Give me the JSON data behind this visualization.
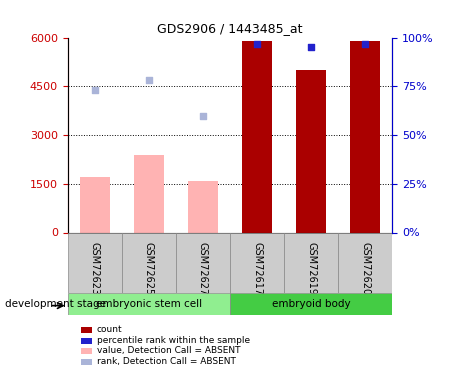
{
  "title": "GDS2906 / 1443485_at",
  "samples": [
    "GSM72623",
    "GSM72625",
    "GSM72627",
    "GSM72617",
    "GSM72619",
    "GSM72620"
  ],
  "bar_values": [
    1700,
    2400,
    1600,
    5900,
    5000,
    5900
  ],
  "bar_colors": [
    "#ffb3b3",
    "#ffb3b3",
    "#ffb3b3",
    "#aa0000",
    "#aa0000",
    "#aa0000"
  ],
  "rank_values": [
    4400,
    4700,
    3600,
    5800,
    5700,
    5800
  ],
  "rank_colors": [
    "#aab4d8",
    "#aab4d8",
    "#aab4d8",
    "#2222cc",
    "#2222cc",
    "#2222cc"
  ],
  "ylim_left": [
    0,
    6000
  ],
  "ylim_right": [
    0,
    100
  ],
  "yticks_left": [
    0,
    1500,
    3000,
    4500,
    6000
  ],
  "yticks_right": [
    0,
    25,
    50,
    75,
    100
  ],
  "groups": [
    {
      "label": "embryonic stem cell",
      "start": 0,
      "end": 3,
      "color": "#90ee90"
    },
    {
      "label": "embryoid body",
      "start": 3,
      "end": 6,
      "color": "#44cc44"
    }
  ],
  "group_label": "development stage",
  "legend_items": [
    {
      "color": "#aa0000",
      "label": "count"
    },
    {
      "color": "#2222cc",
      "label": "percentile rank within the sample"
    },
    {
      "color": "#ffb3b3",
      "label": "value, Detection Call = ABSENT"
    },
    {
      "color": "#aab4d8",
      "label": "rank, Detection Call = ABSENT"
    }
  ],
  "left_yaxis_color": "#cc0000",
  "right_yaxis_color": "#0000cc",
  "bg_color": "#ffffff",
  "plot_bg": "#ffffff",
  "grid_color": "#000000"
}
